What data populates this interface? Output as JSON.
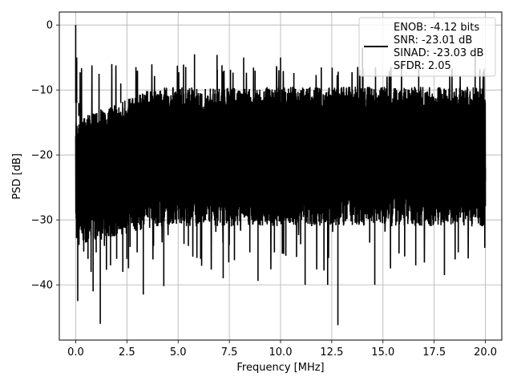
{
  "chart_data": {
    "type": "line",
    "xlabel": "Frequency [MHz]",
    "ylabel": "PSD [dB]",
    "xlim": [
      -0.8,
      20.8
    ],
    "ylim": [
      -48.5,
      2.0
    ],
    "x_ticks": [
      0.0,
      2.5,
      5.0,
      7.5,
      10.0,
      12.5,
      15.0,
      17.5,
      20.0
    ],
    "x_tick_labels": [
      "0.0",
      "2.5",
      "5.0",
      "7.5",
      "10.0",
      "12.5",
      "15.0",
      "17.5",
      "20.0"
    ],
    "y_ticks": [
      0,
      -10,
      -20,
      -30,
      -40
    ],
    "y_tick_labels": [
      "0",
      "−10",
      "−20",
      "−30",
      "−40"
    ],
    "grid": true,
    "legend_position": "upper right",
    "legend": [
      "ENOB: -4.12 bits",
      "SNR: -23.01 dB",
      "SINAD: -23.03 dB",
      "SFDR: 2.05"
    ],
    "series": [
      {
        "color": "#000000",
        "x_range": [
          0.0,
          20.0
        ],
        "noise_band_db": [
          -29,
          -9
        ],
        "points": [
          [
            0.0,
            0.0
          ],
          [
            0.02,
            -19
          ],
          [
            0.05,
            -5
          ],
          [
            0.1,
            -42.5
          ],
          [
            0.15,
            -14
          ],
          [
            0.3,
            -28
          ],
          [
            0.45,
            -31
          ],
          [
            0.6,
            -36
          ],
          [
            0.75,
            -38
          ],
          [
            0.85,
            -41
          ],
          [
            1.0,
            -35
          ],
          [
            1.2,
            -46
          ],
          [
            1.4,
            -34
          ],
          [
            1.7,
            -37
          ],
          [
            2.0,
            -36
          ],
          [
            2.2,
            -9
          ],
          [
            2.3,
            -38
          ],
          [
            2.5,
            -36
          ],
          [
            3.0,
            -35
          ],
          [
            3.3,
            -41.5
          ],
          [
            3.8,
            -34
          ],
          [
            4.3,
            -40.2
          ],
          [
            5.5,
            -34
          ],
          [
            5.8,
            -4.5
          ],
          [
            6.1,
            -36
          ],
          [
            6.9,
            -4.6
          ],
          [
            7.2,
            -39
          ],
          [
            7.6,
            -31
          ],
          [
            8.2,
            -5
          ],
          [
            8.5,
            -35
          ],
          [
            8.9,
            -39.4
          ],
          [
            9.7,
            -35
          ],
          [
            10.0,
            -5
          ],
          [
            11.2,
            -40
          ],
          [
            12.3,
            -40
          ],
          [
            12.8,
            -46.2
          ],
          [
            14.0,
            -3.5
          ],
          [
            14.6,
            -40
          ],
          [
            16.6,
            -37
          ],
          [
            18.0,
            -38.5
          ],
          [
            19.5,
            -3.5
          ],
          [
            20.0,
            -24
          ]
        ]
      }
    ]
  }
}
